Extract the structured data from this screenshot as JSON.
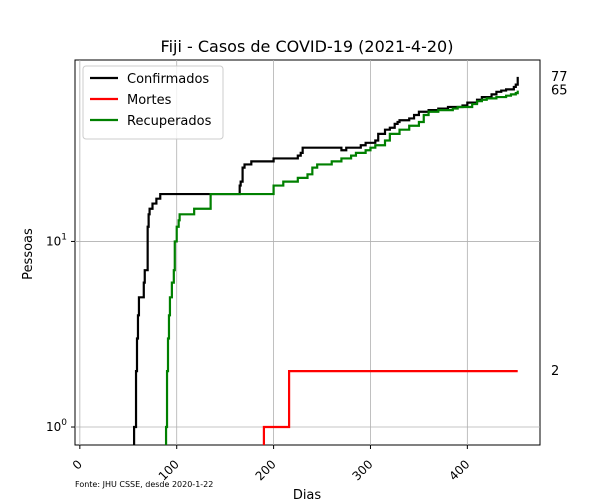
{
  "chart_data": {
    "type": "line",
    "title": "Fiji - Casos de COVID-19 (2021-4-20)",
    "xlabel": "Dias",
    "ylabel": "Pessoas",
    "yscale": "log",
    "xlim": [
      -5,
      475
    ],
    "ylim": [
      0.8,
      95
    ],
    "grid": true,
    "legend_position": "top-left",
    "x_ticks": [
      {
        "value": 0,
        "label": "0"
      },
      {
        "value": 100,
        "label": "100"
      },
      {
        "value": 200,
        "label": "200"
      },
      {
        "value": 300,
        "label": "300"
      },
      {
        "value": 400,
        "label": "400"
      }
    ],
    "y_ticks": [
      {
        "value": 1,
        "label": "10^0",
        "base": "10",
        "exp": "0"
      },
      {
        "value": 10,
        "label": "10^1",
        "base": "10",
        "exp": "1"
      }
    ],
    "series": [
      {
        "name": "Confirmados",
        "color": "#000000",
        "end_label": "77",
        "points": [
          [
            56,
            1
          ],
          [
            58,
            2
          ],
          [
            59,
            3
          ],
          [
            60,
            4
          ],
          [
            61,
            5
          ],
          [
            66,
            6
          ],
          [
            67,
            7
          ],
          [
            70,
            12
          ],
          [
            71,
            14
          ],
          [
            72,
            15
          ],
          [
            75,
            16
          ],
          [
            79,
            17
          ],
          [
            83,
            18
          ],
          [
            165,
            20
          ],
          [
            166,
            21
          ],
          [
            168,
            25
          ],
          [
            170,
            26
          ],
          [
            177,
            27
          ],
          [
            200,
            28
          ],
          [
            225,
            29
          ],
          [
            228,
            30
          ],
          [
            230,
            32
          ],
          [
            270,
            31
          ],
          [
            275,
            32
          ],
          [
            290,
            33
          ],
          [
            295,
            34
          ],
          [
            305,
            35
          ],
          [
            308,
            38
          ],
          [
            315,
            40
          ],
          [
            320,
            41
          ],
          [
            325,
            43
          ],
          [
            328,
            44
          ],
          [
            330,
            45
          ],
          [
            340,
            46
          ],
          [
            345,
            48
          ],
          [
            350,
            50
          ],
          [
            360,
            51
          ],
          [
            370,
            52
          ],
          [
            380,
            53
          ],
          [
            395,
            54
          ],
          [
            400,
            56
          ],
          [
            410,
            58
          ],
          [
            415,
            60
          ],
          [
            425,
            62
          ],
          [
            430,
            64
          ],
          [
            435,
            65
          ],
          [
            440,
            66
          ],
          [
            448,
            68
          ],
          [
            450,
            70
          ],
          [
            452,
            77
          ]
        ]
      },
      {
        "name": "Mortes",
        "color": "#ff0000",
        "end_label": "2",
        "points": [
          [
            190,
            1
          ],
          [
            216,
            2
          ],
          [
            452,
            2
          ]
        ]
      },
      {
        "name": "Recuperados",
        "color": "#008000",
        "end_label": "65",
        "points": [
          [
            89,
            1
          ],
          [
            90,
            2
          ],
          [
            91,
            3
          ],
          [
            92,
            4
          ],
          [
            93,
            5
          ],
          [
            95,
            6
          ],
          [
            97,
            7
          ],
          [
            98,
            10
          ],
          [
            100,
            12
          ],
          [
            102,
            13
          ],
          [
            103,
            14
          ],
          [
            118,
            15
          ],
          [
            135,
            18
          ],
          [
            200,
            20
          ],
          [
            210,
            21
          ],
          [
            225,
            22
          ],
          [
            235,
            23
          ],
          [
            240,
            25
          ],
          [
            245,
            26
          ],
          [
            260,
            27
          ],
          [
            270,
            28
          ],
          [
            280,
            29
          ],
          [
            285,
            30
          ],
          [
            295,
            31
          ],
          [
            300,
            32
          ],
          [
            305,
            33
          ],
          [
            315,
            35
          ],
          [
            320,
            38
          ],
          [
            330,
            40
          ],
          [
            340,
            42
          ],
          [
            350,
            44
          ],
          [
            355,
            48
          ],
          [
            360,
            50
          ],
          [
            370,
            51
          ],
          [
            385,
            52
          ],
          [
            390,
            53
          ],
          [
            405,
            55
          ],
          [
            410,
            57
          ],
          [
            415,
            58
          ],
          [
            420,
            59
          ],
          [
            430,
            60
          ],
          [
            440,
            61
          ],
          [
            445,
            62
          ],
          [
            450,
            63
          ],
          [
            452,
            65
          ]
        ]
      }
    ],
    "source_note": "Fonte: JHU CSSE, desde 2020-1-22"
  }
}
